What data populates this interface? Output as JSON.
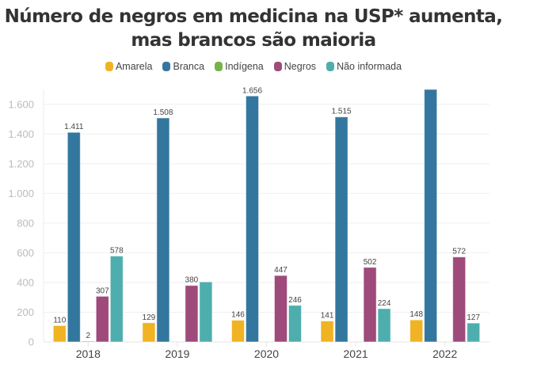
{
  "chart_data": {
    "type": "bar",
    "title": "Número de negros em medicina na USP* aumenta, mas brancos são maioria",
    "xlabel": "",
    "ylabel": "",
    "ylim": [
      0,
      1700
    ],
    "yticks": [
      0,
      200,
      400,
      600,
      800,
      1000,
      1200,
      1400,
      1600
    ],
    "ytick_labels": [
      "0",
      "200",
      "400",
      "600",
      "800",
      "1.000",
      "1.200",
      "1.400",
      "1.600"
    ],
    "grid": true,
    "legend_position": "top-center",
    "categories": [
      "2018",
      "2019",
      "2020",
      "2021",
      "2022"
    ],
    "series": [
      {
        "name": "Amarela",
        "color": "#f0b323",
        "values": [
          110,
          129,
          146,
          141,
          148
        ],
        "labels": [
          "110",
          "129",
          "146",
          "141",
          "148"
        ]
      },
      {
        "name": "Branca",
        "color": "#33779f",
        "values": [
          1411,
          1508,
          1656,
          1515,
          1750
        ],
        "labels": [
          "1.411",
          "1.508",
          "1.656",
          "1.515",
          ""
        ]
      },
      {
        "name": "Indígena",
        "color": "#77b24b",
        "values": [
          2,
          0,
          0,
          0,
          0
        ],
        "labels": [
          "2",
          "",
          "",
          "",
          ""
        ]
      },
      {
        "name": "Negros",
        "color": "#9e4a7a",
        "values": [
          307,
          380,
          447,
          502,
          572
        ],
        "labels": [
          "307",
          "380",
          "447",
          "502",
          "572"
        ]
      },
      {
        "name": "Não informada",
        "color": "#4eaead",
        "values": [
          578,
          404,
          246,
          224,
          127
        ],
        "labels": [
          "578",
          "",
          "246",
          "224",
          "127"
        ]
      }
    ]
  }
}
